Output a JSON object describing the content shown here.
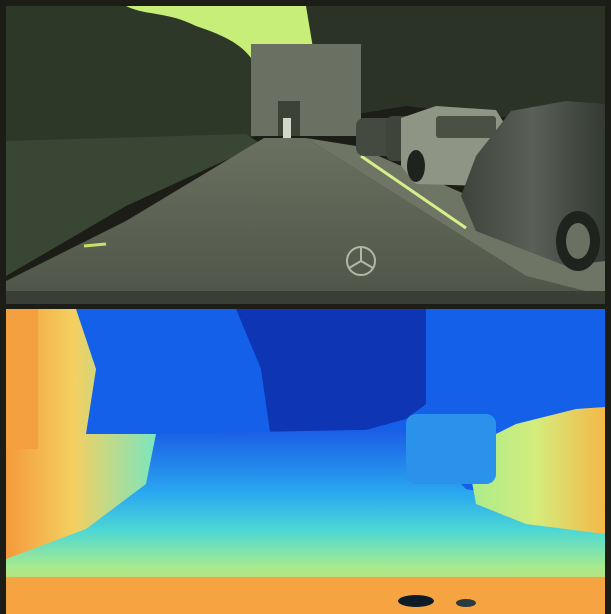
{
  "panels": [
    {
      "id": "rgb",
      "content": "camera-frame",
      "tint": "#8ea05e"
    },
    {
      "id": "depth",
      "content": "depth-map",
      "colormap": [
        "#0a2a9e",
        "#1560e8",
        "#2aa8f0",
        "#5ee0d8",
        "#b8ec8a",
        "#f4d060",
        "#f4a040"
      ]
    }
  ],
  "colors": {
    "sky": "#cdf77d",
    "road": "#5a6152",
    "foliage": "#2c3528",
    "car": "#4a5048",
    "lane_mark": "#d4f08a",
    "frame_bg": "#1b1d16"
  }
}
